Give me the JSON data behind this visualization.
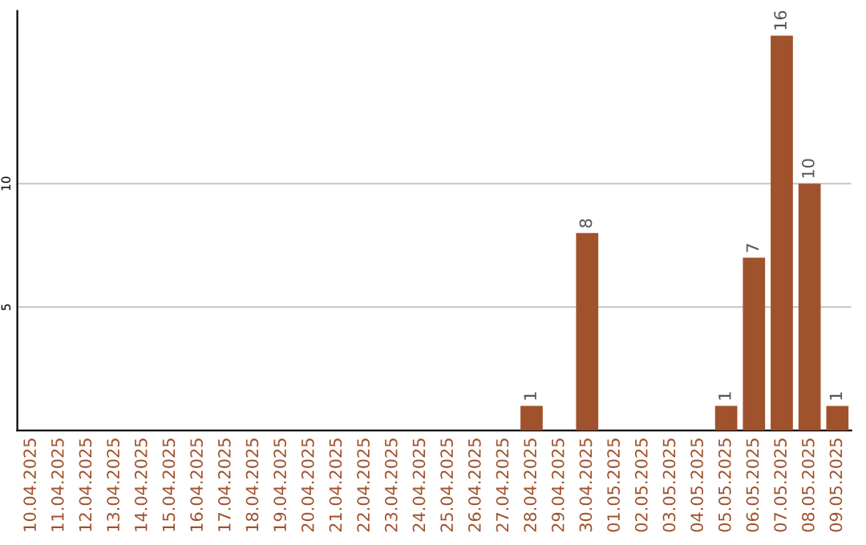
{
  "chart_data": {
    "type": "bar",
    "categories": [
      "10.04.2025",
      "11.04.2025",
      "12.04.2025",
      "13.04.2025",
      "14.04.2025",
      "15.04.2025",
      "16.04.2025",
      "17.04.2025",
      "18.04.2025",
      "19.04.2025",
      "20.04.2025",
      "21.04.2025",
      "22.04.2025",
      "23.04.2025",
      "24.04.2025",
      "25.04.2025",
      "26.04.2025",
      "27.04.2025",
      "28.04.2025",
      "29.04.2025",
      "30.04.2025",
      "01.05.2025",
      "02.05.2025",
      "03.05.2025",
      "04.05.2025",
      "05.05.2025",
      "06.05.2025",
      "07.05.2025",
      "08.05.2025",
      "09.05.2025"
    ],
    "values": [
      0,
      0,
      0,
      0,
      0,
      0,
      0,
      0,
      0,
      0,
      0,
      0,
      0,
      0,
      0,
      0,
      0,
      0,
      1,
      0,
      8,
      0,
      0,
      0,
      0,
      1,
      7,
      16,
      10,
      1
    ],
    "value_labels": [
      null,
      null,
      null,
      null,
      null,
      null,
      null,
      null,
      null,
      null,
      null,
      null,
      null,
      null,
      null,
      null,
      null,
      null,
      "1",
      null,
      "8",
      null,
      null,
      null,
      null,
      "1",
      "7",
      "16",
      "10",
      "1"
    ],
    "color": "#a0522d",
    "ylim": [
      0,
      17
    ],
    "yticks": [
      5,
      10
    ],
    "grid": "y"
  }
}
